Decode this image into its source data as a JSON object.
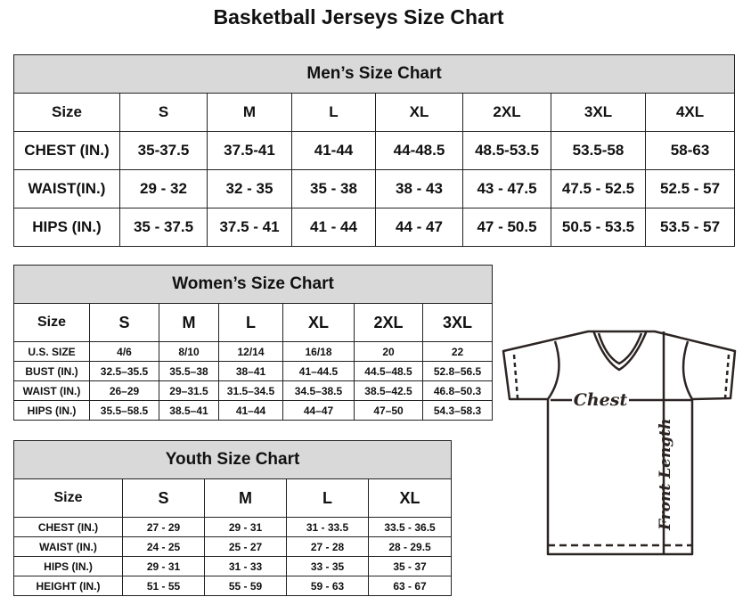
{
  "title": "Basketball Jerseys Size Chart",
  "men": {
    "caption": "Men’s Size Chart",
    "header": [
      "Size",
      "S",
      "M",
      "L",
      "XL",
      "2XL",
      "3XL",
      "4XL"
    ],
    "rows": [
      [
        "CHEST (IN.)",
        "35-37.5",
        "37.5-41",
        "41-44",
        "44-48.5",
        "48.5-53.5",
        "53.5-58",
        "58-63"
      ],
      [
        "WAIST(IN.)",
        "29 - 32",
        "32 - 35",
        "35 - 38",
        "38 - 43",
        "43 - 47.5",
        "47.5 - 52.5",
        "52.5 - 57"
      ],
      [
        "HIPS (IN.)",
        "35 - 37.5",
        "37.5 - 41",
        "41 - 44",
        "44 - 47",
        "47 - 50.5",
        "50.5 - 53.5",
        "53.5 - 57"
      ]
    ]
  },
  "women": {
    "caption": "Women’s Size Chart",
    "header": [
      "Size",
      "S",
      "M",
      "L",
      "XL",
      "2XL",
      "3XL"
    ],
    "rows": [
      [
        "U.S. SIZE",
        "4/6",
        "8/10",
        "12/14",
        "16/18",
        "20",
        "22"
      ],
      [
        "BUST (IN.)",
        "32.5–35.5",
        "35.5–38",
        "38–41",
        "41–44.5",
        "44.5–48.5",
        "52.8–56.5"
      ],
      [
        "WAIST (IN.)",
        "26–29",
        "29–31.5",
        "31.5–34.5",
        "34.5–38.5",
        "38.5–42.5",
        "46.8–50.3"
      ],
      [
        "HIPS (IN.)",
        "35.5–58.5",
        "38.5–41",
        "41–44",
        "44–47",
        "47–50",
        "54.3–58.3"
      ]
    ]
  },
  "youth": {
    "caption": "Youth Size Chart",
    "header": [
      "Size",
      "S",
      "M",
      "L",
      "XL"
    ],
    "rows": [
      [
        "CHEST (IN.)",
        "27 - 29",
        "29 - 31",
        "31 - 33.5",
        "33.5 - 36.5"
      ],
      [
        "WAIST (IN.)",
        "24 - 25",
        "25 - 27",
        "27 - 28",
        "28 - 29.5"
      ],
      [
        "HIPS (IN.)",
        "29 - 31",
        "31 - 33",
        "33 - 35",
        "35 - 37"
      ],
      [
        "HEIGHT (IN.)",
        "51 - 55",
        "55 - 59",
        "59 - 63",
        "63 - 67"
      ]
    ]
  },
  "diagram": {
    "chest_label": "Chest",
    "length_label": "Front Length",
    "icon": "t-shirt-measurement-diagram",
    "line_color": "#2b2422"
  }
}
